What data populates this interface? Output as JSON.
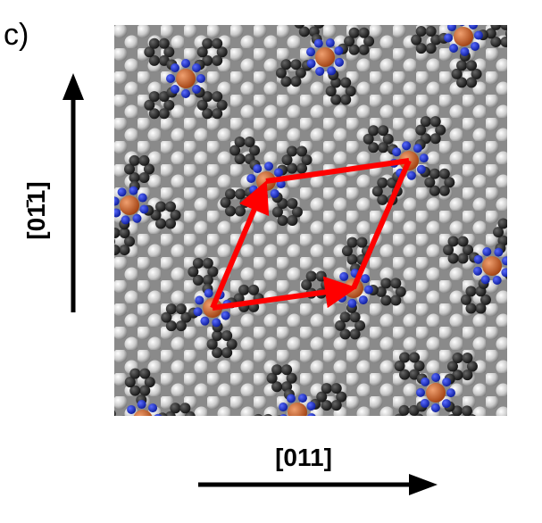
{
  "panel_label": "c)",
  "vertical_axis_label": "[01̄1]",
  "horizontal_axis_label": "[011]"
}
